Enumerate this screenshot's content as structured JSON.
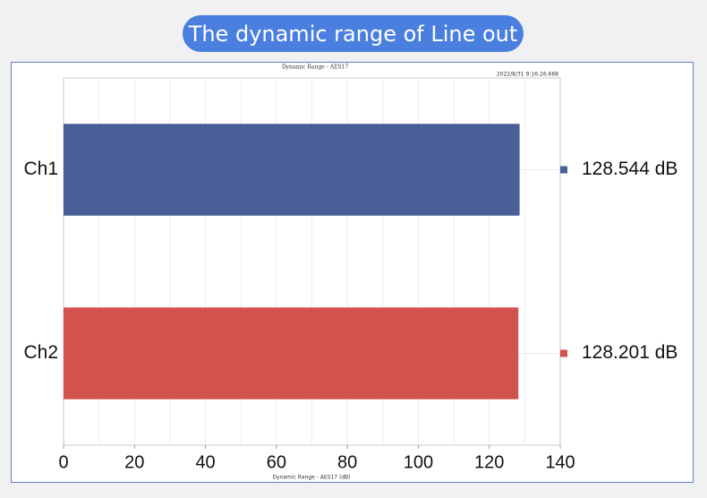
{
  "header": {
    "title": "The dynamic range of Line out"
  },
  "chart_data": {
    "type": "bar",
    "orientation": "horizontal",
    "title": "Dynamic Range - AES17",
    "timestamp": "2022/8/31 9:16:26.668",
    "xlabel": "Dynamic Range - AES17 (dB)",
    "ylabel": "",
    "xlim": [
      0,
      140
    ],
    "xticks": [
      0,
      20,
      40,
      60,
      80,
      100,
      120,
      140
    ],
    "categories": [
      "Ch1",
      "Ch2"
    ],
    "values": [
      128.544,
      128.201
    ],
    "value_labels": [
      "128.544 dB",
      "128.201 dB"
    ],
    "colors": [
      "#4a5f97",
      "#d2524e"
    ],
    "grid": true,
    "legend": "right of bars"
  }
}
